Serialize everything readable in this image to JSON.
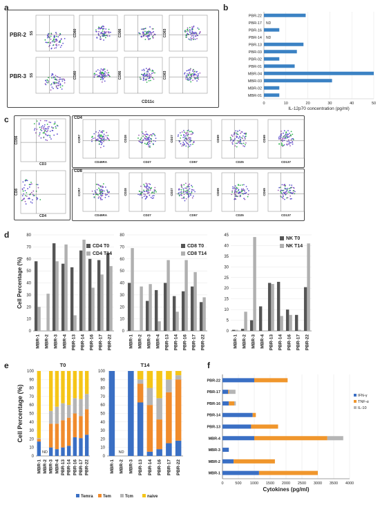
{
  "panels": {
    "a": "a",
    "b": "b",
    "c": "c",
    "d": "d",
    "e": "e",
    "f": "f"
  },
  "panel_a": {
    "rows": [
      "PBR-2",
      "PBR-3"
    ],
    "y_labels": [
      "SS",
      "CD80",
      "CD86",
      "CD83"
    ],
    "x_label": "CD11c"
  },
  "panel_c": {
    "left_y_labels": [
      "CD56",
      "CD8"
    ],
    "left_x_labels": [
      "CD3",
      "CD4"
    ],
    "cd4_title": "CD4",
    "cd8_title": "CD8",
    "y_labels": [
      "CCR7",
      "CD28",
      "CD27",
      "CD69",
      "CD69"
    ],
    "x_labels": [
      "CD45RA",
      "CD27",
      "CD57",
      "CD25",
      "CD137"
    ]
  },
  "chart_data": [
    {
      "id": "b",
      "type": "bar",
      "orientation": "horizontal",
      "categories": [
        "PBR-22",
        "PBR-17",
        "PBR-16",
        "PBR-14",
        "PBR-13",
        "PBR-03",
        "PBR-02",
        "PBR-01",
        "MBR-04",
        "MBR-03",
        "MBR-02",
        "MBR-01"
      ],
      "values": [
        19,
        null,
        7,
        null,
        18,
        15,
        7,
        14,
        50,
        31,
        7,
        7
      ],
      "na_label": "ND",
      "xlabel": "IL-12p70 concentration (pg/ml)",
      "xlim": [
        0,
        50
      ],
      "xticks": [
        0,
        10,
        20,
        30,
        40,
        50
      ],
      "color": "#3b82c4"
    },
    {
      "id": "d1",
      "type": "bar",
      "categories": [
        "MBR-1",
        "MBR-2",
        "MBR-3",
        "MBR-4",
        "PBR-13",
        "PBR-14",
        "PBR-16",
        "PBR-17",
        "PBR-22"
      ],
      "series": [
        {
          "name": "CD4 T0",
          "values": [
            58,
            0,
            73,
            56,
            53,
            67,
            60,
            59,
            65
          ],
          "color": "#555555"
        },
        {
          "name": "CD4 T14",
          "values": [
            20,
            31,
            58,
            72,
            13,
            76,
            36,
            47,
            54
          ],
          "color": "#b0b0b0"
        }
      ],
      "ylabel": "Cell Percentage (%)",
      "ylim": [
        0,
        80
      ],
      "yticks": [
        0,
        10,
        20,
        30,
        40,
        50,
        60,
        70,
        80
      ]
    },
    {
      "id": "d2",
      "type": "bar",
      "categories": [
        "MBR-1",
        "MBR-2",
        "MBR-3",
        "MBR-4",
        "PBR-13",
        "PBR-14",
        "PBR-16",
        "PBR-17",
        "PBR-22"
      ],
      "series": [
        {
          "name": "CD8 T0",
          "values": [
            40,
            0,
            25,
            34,
            40,
            29,
            33,
            37,
            24
          ],
          "color": "#555555"
        },
        {
          "name": "CD8 T14",
          "values": [
            69,
            37,
            39,
            8,
            59,
            16,
            59,
            49,
            28
          ],
          "color": "#b0b0b0"
        }
      ],
      "ylim": [
        0,
        80
      ],
      "yticks": [
        0,
        10,
        20,
        30,
        40,
        50,
        60,
        70,
        80
      ]
    },
    {
      "id": "d3",
      "type": "bar",
      "categories": [
        "MBR-1",
        "MBR-2",
        "MBR-3",
        "MBR-4",
        "PBR-13",
        "PBR-14",
        "PBR-16",
        "PBR-17",
        "PBR-22"
      ],
      "series": [
        {
          "name": "NK T0",
          "values": [
            0.5,
            1,
            5,
            11.5,
            22.5,
            23,
            10,
            7.5,
            20.5
          ],
          "color": "#555555"
        },
        {
          "name": "NK T14",
          "values": [
            0.5,
            9,
            44,
            0,
            22,
            7,
            7.5,
            0.5,
            41
          ],
          "color": "#b0b0b0"
        }
      ],
      "ylim": [
        0,
        45
      ],
      "yticks": [
        0,
        5,
        10,
        15,
        20,
        25,
        30,
        35,
        40,
        45
      ]
    },
    {
      "id": "e1",
      "type": "bar",
      "stacked": true,
      "title": "T0",
      "categories": [
        "MBR-1",
        "MBR-2",
        "MBR-3",
        "MBR-4",
        "PBR-13",
        "PBR-14",
        "PBR-16",
        "PBR-17",
        "PBR-22"
      ],
      "nd": [
        false,
        true,
        false,
        false,
        false,
        false,
        false,
        false,
        false
      ],
      "na_label": "ND",
      "series": [
        {
          "name": "Temra",
          "values": [
            17,
            0,
            10,
            8,
            10,
            12,
            22,
            21,
            25
          ],
          "color": "#3a6fc4"
        },
        {
          "name": "Tem",
          "values": [
            3,
            0,
            28,
            30,
            32,
            33,
            28,
            26,
            30
          ],
          "color": "#f08b2c"
        },
        {
          "name": "Tcm",
          "values": [
            1,
            0,
            15,
            20,
            20,
            15,
            18,
            20,
            18
          ],
          "color": "#b5b5b5"
        },
        {
          "name": "naive",
          "values": [
            79,
            0,
            47,
            42,
            38,
            40,
            32,
            33,
            27
          ],
          "color": "#f5c518"
        }
      ],
      "ylabel": "Cell Percentage (%)",
      "ylim": [
        0,
        100
      ],
      "yticks": [
        0,
        10,
        20,
        30,
        40,
        50,
        60,
        70,
        80,
        90,
        100
      ]
    },
    {
      "id": "e2",
      "type": "bar",
      "stacked": true,
      "title": "T14",
      "categories": [
        "MBR-1",
        "MBR-2",
        "MBR-3",
        "PBR-13",
        "PBR-14",
        "PBR-16",
        "PBR-17",
        "PBR-22"
      ],
      "nd": [
        false,
        true,
        false,
        false,
        false,
        false,
        false,
        false
      ],
      "na_label": "ND",
      "series": [
        {
          "name": "Temra",
          "values": [
            100,
            0,
            100,
            63,
            5,
            8,
            15,
            18
          ],
          "color": "#3a6fc4"
        },
        {
          "name": "Tem",
          "values": [
            0,
            0,
            0,
            22,
            55,
            35,
            60,
            72
          ],
          "color": "#f08b2c"
        },
        {
          "name": "Tcm",
          "values": [
            0,
            0,
            0,
            5,
            20,
            25,
            15,
            5
          ],
          "color": "#b5b5b5"
        },
        {
          "name": "naive",
          "values": [
            0,
            0,
            0,
            10,
            20,
            32,
            10,
            5
          ],
          "color": "#f5c518"
        }
      ],
      "ylim": [
        0,
        100
      ],
      "yticks": [
        0,
        10,
        20,
        30,
        40,
        50,
        60,
        70,
        80,
        90,
        100
      ]
    },
    {
      "id": "f",
      "type": "bar",
      "stacked": true,
      "orientation": "horizontal",
      "categories": [
        "PBR-22",
        "PBR-17",
        "PBR-16",
        "PBR-14",
        "PBR-13",
        "MBR-4",
        "MBR-3",
        "MBR-2",
        "MBR-1"
      ],
      "series": [
        {
          "name": "IFN-γ",
          "values": [
            1000,
            180,
            200,
            950,
            900,
            1000,
            200,
            350,
            1150
          ],
          "color": "#3a6fc4"
        },
        {
          "name": "TNF-α",
          "values": [
            1050,
            30,
            170,
            100,
            850,
            2300,
            0,
            1300,
            1850
          ],
          "color": "#f0962c"
        },
        {
          "name": "IL-10",
          "values": [
            0,
            200,
            50,
            0,
            0,
            500,
            0,
            0,
            0
          ],
          "color": "#b5b5b5"
        }
      ],
      "xlabel": "Cytokines (pg/ml)",
      "xlim": [
        0,
        4000
      ],
      "xticks": [
        0,
        500,
        1000,
        1500,
        2000,
        2500,
        3000,
        3500,
        4000
      ]
    }
  ]
}
